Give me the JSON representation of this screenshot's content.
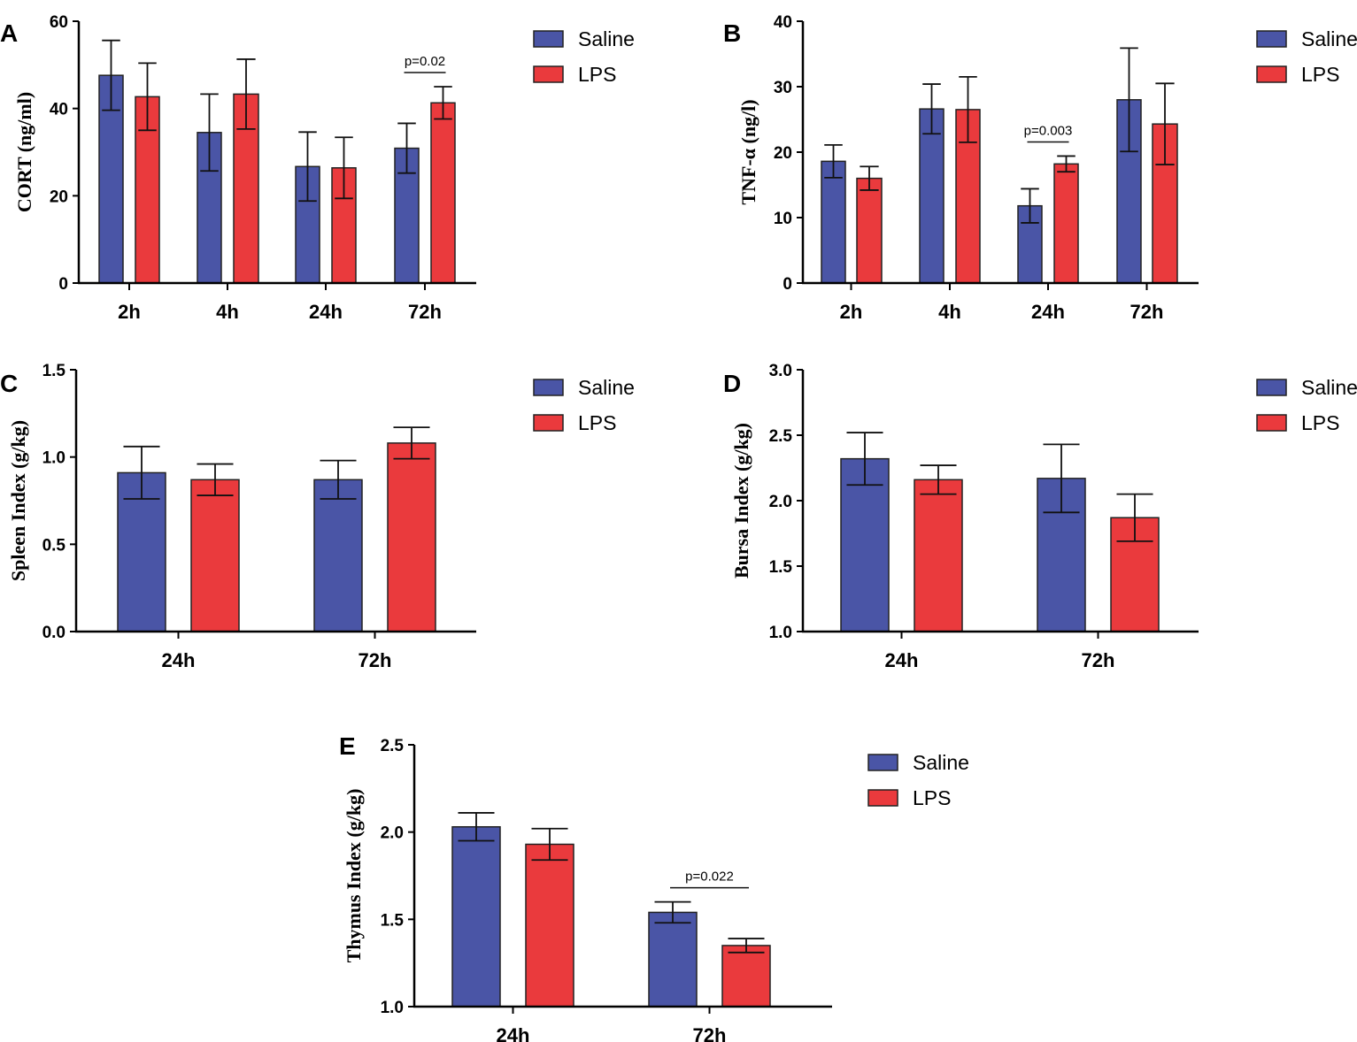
{
  "colors": {
    "saline": "#4a55a6",
    "lps": "#ea3a3d",
    "axis": "#000000"
  },
  "legend": {
    "saline": "Saline",
    "lps": "LPS"
  },
  "chart_data": [
    {
      "panel": "A",
      "type": "bar",
      "ylabel": "CORT (ng/ml)",
      "categories": [
        "2h",
        "4h",
        "24h",
        "72h"
      ],
      "ylim": [
        0,
        60
      ],
      "yticks": [
        0,
        20,
        40,
        60
      ],
      "series": [
        {
          "name": "Saline",
          "values": [
            47.6,
            34.5,
            26.7,
            30.9
          ],
          "errors": [
            8.0,
            8.8,
            7.9,
            5.7
          ]
        },
        {
          "name": "LPS",
          "values": [
            42.7,
            43.3,
            26.4,
            41.3
          ],
          "errors": [
            7.7,
            8.0,
            7.0,
            3.7
          ]
        }
      ],
      "annotations": [
        {
          "text": "p=0.02",
          "category": 3
        }
      ]
    },
    {
      "panel": "B",
      "type": "bar",
      "ylabel": "TNF-α (ng/l)",
      "categories": [
        "2h",
        "4h",
        "24h",
        "72h"
      ],
      "ylim": [
        0,
        40
      ],
      "yticks": [
        0,
        10,
        20,
        30,
        40
      ],
      "series": [
        {
          "name": "Saline",
          "values": [
            18.6,
            26.6,
            11.8,
            28.0
          ],
          "errors": [
            2.5,
            3.8,
            2.6,
            7.9
          ]
        },
        {
          "name": "LPS",
          "values": [
            16.0,
            26.5,
            18.2,
            24.3
          ],
          "errors": [
            1.8,
            5.0,
            1.2,
            6.2
          ]
        }
      ],
      "annotations": [
        {
          "text": "p=0.003",
          "category": 2
        }
      ]
    },
    {
      "panel": "C",
      "type": "bar",
      "ylabel": "Spleen Index (g/kg)",
      "categories": [
        "24h",
        "72h"
      ],
      "ylim": [
        0,
        1.5
      ],
      "yticks": [
        "0.0",
        "0.5",
        "1.0",
        "1.5"
      ],
      "series": [
        {
          "name": "Saline",
          "values": [
            0.91,
            0.87
          ],
          "errors": [
            0.15,
            0.11
          ]
        },
        {
          "name": "LPS",
          "values": [
            0.87,
            1.08
          ],
          "errors": [
            0.09,
            0.09
          ]
        }
      ],
      "annotations": []
    },
    {
      "panel": "D",
      "type": "bar",
      "ylabel": "Bursa Index (g/kg)",
      "categories": [
        "24h",
        "72h"
      ],
      "ylim": [
        1.0,
        3.0
      ],
      "yticks": [
        "1.0",
        "1.5",
        "2.0",
        "2.5",
        "3.0"
      ],
      "series": [
        {
          "name": "Saline",
          "values": [
            2.32,
            2.17
          ],
          "errors": [
            0.2,
            0.26
          ]
        },
        {
          "name": "LPS",
          "values": [
            2.16,
            1.87
          ],
          "errors": [
            0.11,
            0.18
          ]
        }
      ],
      "annotations": []
    },
    {
      "panel": "E",
      "type": "bar",
      "ylabel": "Thymus Index (g/kg)",
      "categories": [
        "24h",
        "72h"
      ],
      "ylim": [
        1.0,
        2.5
      ],
      "yticks": [
        "1.0",
        "1.5",
        "2.0",
        "2.5"
      ],
      "series": [
        {
          "name": "Saline",
          "values": [
            2.03,
            1.54
          ],
          "errors": [
            0.08,
            0.06
          ]
        },
        {
          "name": "LPS",
          "values": [
            1.93,
            1.35
          ],
          "errors": [
            0.09,
            0.04
          ]
        }
      ],
      "annotations": [
        {
          "text": "p=0.022",
          "category": 1
        }
      ]
    }
  ]
}
